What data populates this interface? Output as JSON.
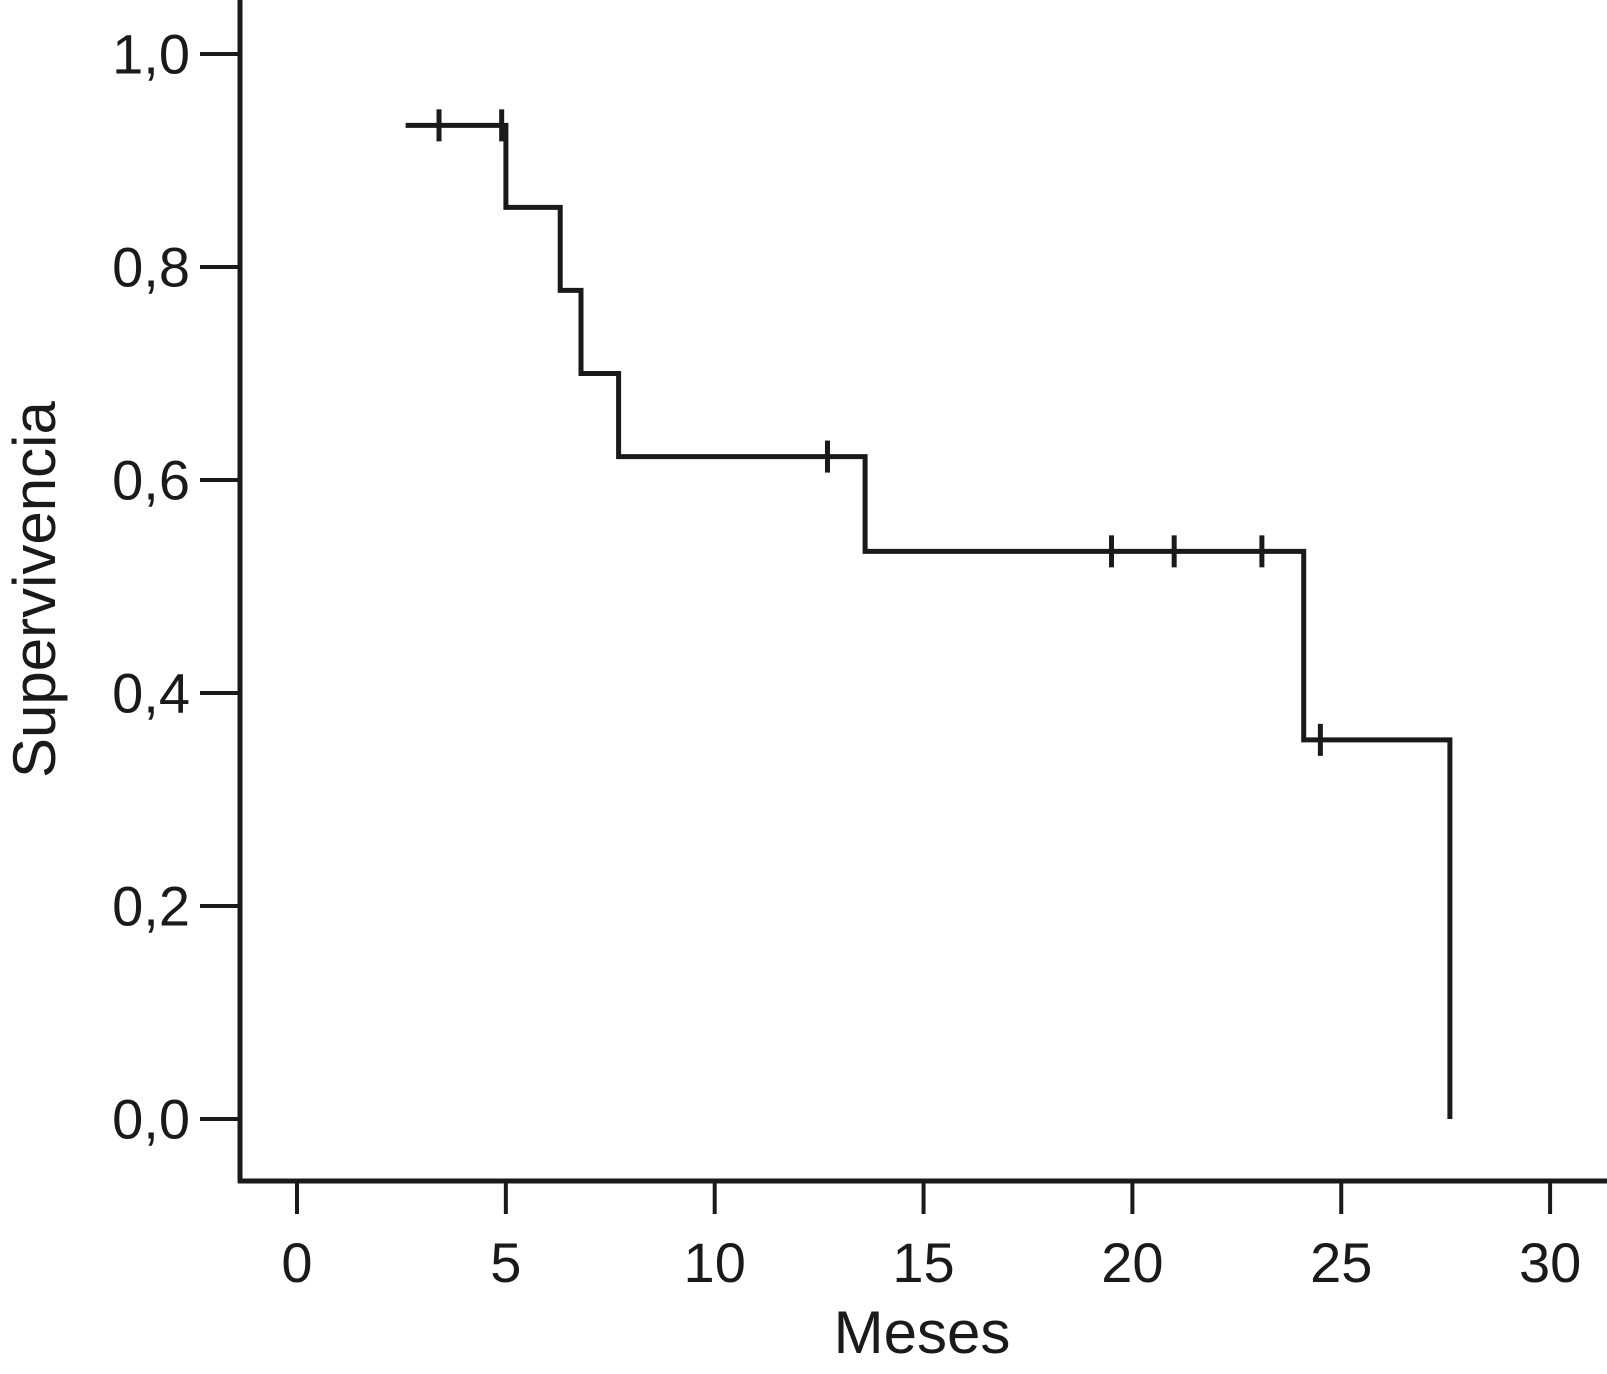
{
  "chart_data": {
    "type": "line",
    "subtype": "kaplan-meier-step",
    "title": "",
    "xlabel": "Meses",
    "ylabel": "Supervivencia",
    "x_ticks": [
      0,
      5,
      10,
      15,
      20,
      25,
      30
    ],
    "x_tick_labels": [
      "0",
      "5",
      "10",
      "15",
      "20",
      "25",
      "30"
    ],
    "y_ticks": [
      0.0,
      0.2,
      0.4,
      0.6,
      0.8,
      1.0
    ],
    "y_tick_labels": [
      "0,0",
      "0,2",
      "0,4",
      "0,6",
      "0,8",
      "1,0"
    ],
    "xlim": [
      0,
      31.4
    ],
    "ylim": [
      0,
      1.05
    ],
    "grid": false,
    "legend": "none",
    "line_color": "#1a1a1a",
    "series": [
      {
        "name": "Supervivencia",
        "start": {
          "x": 2.6,
          "y": 0.933
        },
        "drops": [
          {
            "x": 5.0,
            "y": 0.856
          },
          {
            "x": 6.3,
            "y": 0.778
          },
          {
            "x": 6.8,
            "y": 0.7
          },
          {
            "x": 7.7,
            "y": 0.622
          },
          {
            "x": 13.6,
            "y": 0.533
          },
          {
            "x": 24.1,
            "y": 0.356
          },
          {
            "x": 27.6,
            "y": 0.0
          }
        ],
        "censored": [
          {
            "x": 3.4,
            "y": 0.933
          },
          {
            "x": 4.9,
            "y": 0.933
          },
          {
            "x": 12.7,
            "y": 0.622
          },
          {
            "x": 19.5,
            "y": 0.533
          },
          {
            "x": 21.0,
            "y": 0.533
          },
          {
            "x": 23.1,
            "y": 0.533
          },
          {
            "x": 24.5,
            "y": 0.356
          }
        ]
      }
    ]
  }
}
